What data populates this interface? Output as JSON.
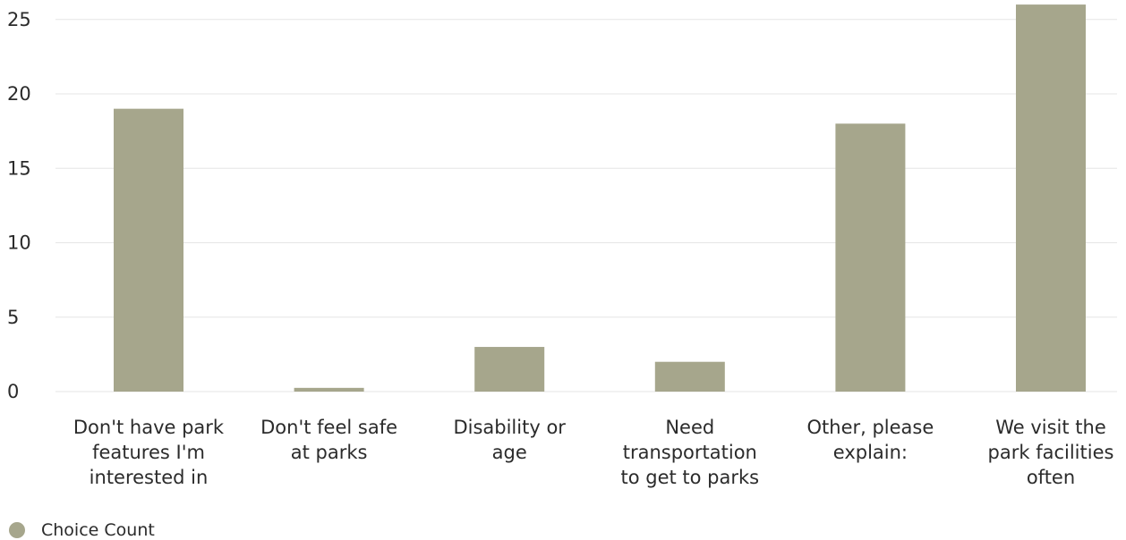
{
  "chart_data": {
    "type": "bar",
    "categories": [
      "Don't have park features I'm interested in",
      "Don't feel safe at parks",
      "Disability or age",
      "Need transportation to get to parks",
      "Other, please explain:",
      "We visit the park facilities often"
    ],
    "category_lines": [
      [
        "Don't have park",
        "features I'm",
        "interested in"
      ],
      [
        "Don't feel safe",
        "at parks"
      ],
      [
        "Disability or",
        "age"
      ],
      [
        "Need",
        "transportation",
        "to get to parks"
      ],
      [
        "Other, please",
        "explain:"
      ],
      [
        "We visit the",
        "park facilities",
        "often"
      ]
    ],
    "series": [
      {
        "name": "Choice Count",
        "values": [
          19,
          0.25,
          3,
          2,
          18,
          26
        ],
        "color": "#a6a68c"
      }
    ],
    "ylim": [
      0,
      26
    ],
    "yticks": [
      0,
      5,
      10,
      15,
      20,
      25
    ],
    "grid": true,
    "legend_position": "bottom-left"
  },
  "legend": {
    "label": "Choice Count"
  }
}
